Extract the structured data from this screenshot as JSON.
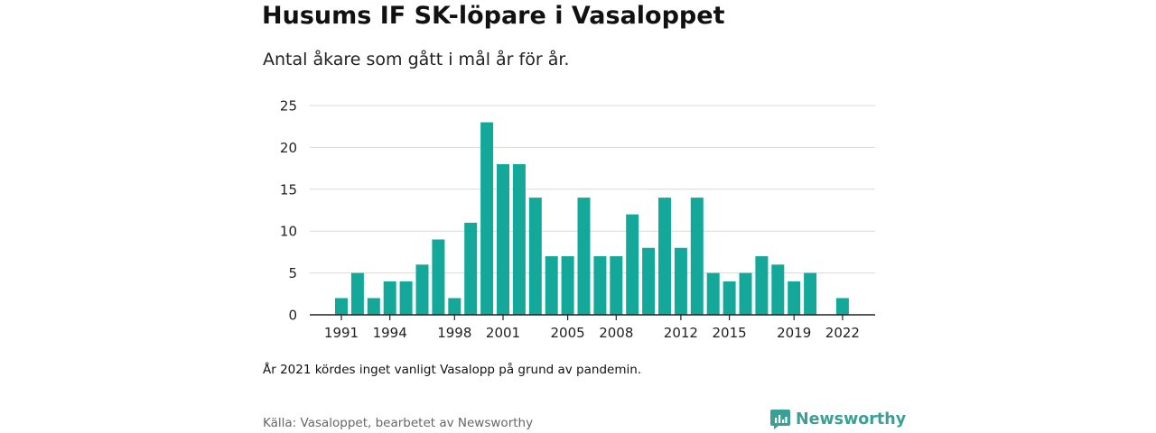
{
  "header": {
    "title": "Husums IF SK-löpare i Vasaloppet",
    "subtitle": "Antal åkare som gått i mål år för år."
  },
  "footer": {
    "note": "År 2021 kördes inget vanligt Vasalopp på grund av pandemin.",
    "source": "Källa: Vasaloppet, bearbetet av Newsworthy",
    "brand": "Newsworthy",
    "brand_icon": "newsworthy-logo-icon"
  },
  "colors": {
    "bar": "#13a89a",
    "grid": "#d9d9d9",
    "axis": "#222222",
    "brand": "#3a9f95"
  },
  "chart_data": {
    "type": "bar",
    "title": "Husums IF SK-löpare i Vasaloppet",
    "subtitle": "Antal åkare som gått i mål år för år.",
    "categories": [
      "1991",
      "1992",
      "1993",
      "1994",
      "1995",
      "1996",
      "1997",
      "1998",
      "1999",
      "2000",
      "2001",
      "2002",
      "2003",
      "2004",
      "2005",
      "2006",
      "2007",
      "2008",
      "2009",
      "2010",
      "2011",
      "2012",
      "2013",
      "2014",
      "2015",
      "2016",
      "2017",
      "2018",
      "2019",
      "2020",
      "2021",
      "2022"
    ],
    "values": [
      2,
      5,
      2,
      4,
      4,
      6,
      9,
      2,
      11,
      23,
      18,
      18,
      14,
      7,
      7,
      14,
      7,
      7,
      12,
      8,
      14,
      8,
      14,
      5,
      4,
      5,
      7,
      6,
      4,
      5,
      0,
      2
    ],
    "x_tick_labels": [
      "1991",
      "1994",
      "1998",
      "2001",
      "2005",
      "2008",
      "2012",
      "2015",
      "2019",
      "2022"
    ],
    "yticks": [
      0,
      5,
      10,
      15,
      20,
      25
    ],
    "ylim": [
      0,
      25
    ],
    "xlabel": "",
    "ylabel": "",
    "grid": true,
    "legend": "none"
  }
}
